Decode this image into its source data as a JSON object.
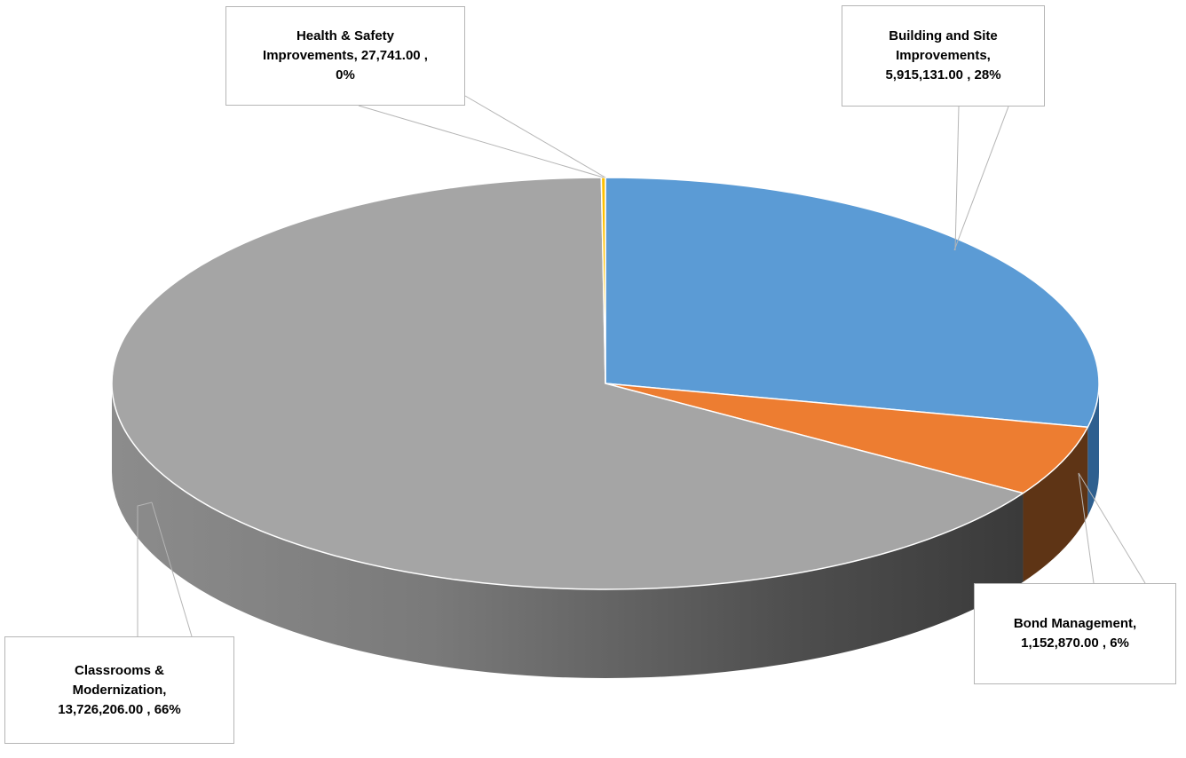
{
  "chart_data": {
    "type": "pie",
    "variant": "3d",
    "title": "",
    "slices": [
      {
        "name": "Building and Site Improvements",
        "value": 5915131.0,
        "value_label": "5,915,131.00",
        "percent": "28%",
        "color": "#5b9bd5",
        "side_color": "#2e5f8f"
      },
      {
        "name": "Bond Management",
        "value": 1152870.0,
        "value_label": "1,152,870.00",
        "percent": "6%",
        "color": "#ed7d31",
        "side_color": "#5e3415"
      },
      {
        "name": "Classrooms & Modernization",
        "value": 13726206.0,
        "value_label": "13,726,206.00",
        "percent": "66%",
        "color": "#a5a5a5",
        "side_color": "#6b6b6b"
      },
      {
        "name": "Health & Safety Improvements",
        "value": 27741.0,
        "value_label": "27,741.00",
        "percent": "0%",
        "color": "#ffc000",
        "side_color": "#8a6a00"
      }
    ],
    "legend": "none",
    "data_labels": "callouts"
  },
  "labels": {
    "health_safety": {
      "line1": "Health & Safety",
      "line2": "Improvements,  27,741.00 ,",
      "line3": "0%"
    },
    "building_site": {
      "line1": "Building and Site",
      "line2": "Improvements,",
      "line3": "5,915,131.00 , 28%"
    },
    "bond_mgmt": {
      "line1": "Bond Management,",
      "line2": "1,152,870.00 , 6%"
    },
    "classrooms": {
      "line1": "Classrooms &",
      "line2": "Modernization,",
      "line3": "13,726,206.00 , 66%"
    }
  }
}
